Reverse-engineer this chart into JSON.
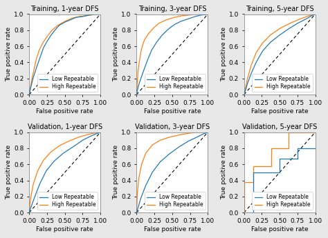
{
  "titles": [
    "Training, 1-year DFS",
    "Training, 3-year DFS",
    "Training, 5-year DFS",
    "Validation, 1-year DFS",
    "Validation, 3-year DFS",
    "Validation, 5-year DFS"
  ],
  "xlabel": "False positive rate",
  "ylabel": "True positive rate",
  "line_colors": {
    "low": "#1f77b4",
    "high": "#ff7f0e"
  },
  "legend_labels": [
    "Low Repeatable",
    "High Repeatable"
  ],
  "curves": {
    "train_1yr": {
      "low": {
        "x": [
          0,
          0.02,
          0.04,
          0.06,
          0.09,
          0.12,
          0.16,
          0.2,
          0.25,
          0.3,
          0.36,
          0.42,
          0.5,
          0.58,
          0.66,
          0.75,
          0.84,
          0.92,
          1.0
        ],
        "y": [
          0,
          0.08,
          0.15,
          0.22,
          0.3,
          0.38,
          0.48,
          0.58,
          0.66,
          0.73,
          0.8,
          0.86,
          0.9,
          0.93,
          0.96,
          0.97,
          0.99,
          1.0,
          1.0
        ]
      },
      "high": {
        "x": [
          0,
          0.02,
          0.04,
          0.07,
          0.1,
          0.14,
          0.19,
          0.25,
          0.32,
          0.4,
          0.5,
          0.6,
          0.7,
          0.8,
          0.88,
          0.94,
          1.0
        ],
        "y": [
          0,
          0.1,
          0.2,
          0.32,
          0.44,
          0.55,
          0.64,
          0.72,
          0.8,
          0.86,
          0.91,
          0.95,
          0.97,
          0.98,
          0.99,
          1.0,
          1.0
        ]
      }
    },
    "train_3yr": {
      "low": {
        "x": [
          0,
          0.01,
          0.03,
          0.06,
          0.1,
          0.15,
          0.21,
          0.28,
          0.36,
          0.44,
          0.53,
          0.62,
          0.72,
          0.82,
          0.91,
          1.0
        ],
        "y": [
          0,
          0.05,
          0.12,
          0.2,
          0.3,
          0.42,
          0.55,
          0.65,
          0.74,
          0.81,
          0.87,
          0.91,
          0.94,
          0.97,
          0.99,
          1.0
        ]
      },
      "high": {
        "x": [
          0,
          0.01,
          0.02,
          0.04,
          0.07,
          0.11,
          0.17,
          0.24,
          0.32,
          0.42,
          0.53,
          0.64,
          0.75,
          0.85,
          0.93,
          1.0
        ],
        "y": [
          0,
          0.15,
          0.28,
          0.42,
          0.57,
          0.68,
          0.76,
          0.83,
          0.89,
          0.93,
          0.96,
          0.98,
          0.99,
          1.0,
          1.0,
          1.0
        ]
      }
    },
    "train_5yr": {
      "low": {
        "x": [
          0,
          0.02,
          0.05,
          0.1,
          0.17,
          0.26,
          0.37,
          0.5,
          0.63,
          0.76,
          0.87,
          0.95,
          1.0
        ],
        "y": [
          0,
          0.05,
          0.14,
          0.26,
          0.4,
          0.54,
          0.65,
          0.74,
          0.82,
          0.89,
          0.94,
          0.98,
          1.0
        ]
      },
      "high": {
        "x": [
          0,
          0.02,
          0.05,
          0.1,
          0.17,
          0.26,
          0.37,
          0.5,
          0.63,
          0.76,
          0.88,
          0.95,
          1.0
        ],
        "y": [
          0,
          0.08,
          0.2,
          0.36,
          0.52,
          0.64,
          0.74,
          0.82,
          0.88,
          0.93,
          0.97,
          0.99,
          1.0
        ]
      }
    },
    "val_1yr": {
      "low": {
        "x": [
          0,
          0.03,
          0.08,
          0.15,
          0.24,
          0.35,
          0.48,
          0.62,
          0.75,
          0.86,
          0.94,
          1.0
        ],
        "y": [
          0,
          0.08,
          0.2,
          0.36,
          0.52,
          0.64,
          0.74,
          0.82,
          0.9,
          0.95,
          0.98,
          1.0
        ]
      },
      "high": {
        "x": [
          0,
          0.02,
          0.06,
          0.12,
          0.2,
          0.3,
          0.42,
          0.56,
          0.7,
          0.82,
          0.92,
          1.0
        ],
        "y": [
          0,
          0.18,
          0.36,
          0.52,
          0.65,
          0.75,
          0.83,
          0.89,
          0.94,
          0.97,
          0.99,
          1.0
        ]
      }
    },
    "val_3yr": {
      "low": {
        "x": [
          0,
          0.02,
          0.06,
          0.13,
          0.22,
          0.33,
          0.46,
          0.6,
          0.73,
          0.85,
          0.94,
          1.0
        ],
        "y": [
          0,
          0.06,
          0.18,
          0.34,
          0.5,
          0.63,
          0.73,
          0.82,
          0.89,
          0.94,
          0.98,
          1.0
        ]
      },
      "high": {
        "x": [
          0,
          0.01,
          0.03,
          0.07,
          0.13,
          0.22,
          0.33,
          0.47,
          0.62,
          0.76,
          0.88,
          0.96,
          1.0
        ],
        "y": [
          0,
          0.22,
          0.42,
          0.6,
          0.74,
          0.84,
          0.9,
          0.94,
          0.97,
          0.99,
          1.0,
          1.0,
          1.0
        ]
      }
    },
    "val_5yr": {
      "low": {
        "x": [
          0,
          0.0,
          0.13,
          0.13,
          0.5,
          0.5,
          0.75,
          0.75,
          1.0
        ],
        "y": [
          0,
          0.0,
          0.0,
          0.5,
          0.5,
          0.67,
          0.67,
          0.8,
          0.8
        ]
      },
      "high": {
        "x": [
          0,
          0.0,
          0.0,
          0.13,
          0.13,
          0.38,
          0.38,
          0.63,
          0.63,
          0.88,
          0.88,
          1.0
        ],
        "y": [
          0,
          0.0,
          0.38,
          0.38,
          0.58,
          0.58,
          0.8,
          0.8,
          1.0,
          1.0,
          1.0,
          1.0
        ]
      }
    }
  },
  "background_color": "#e8e8e8",
  "subplot_bg": "#ffffff",
  "tick_fontsize": 6.5,
  "label_fontsize": 6.5,
  "title_fontsize": 7.0,
  "legend_fontsize": 5.5
}
